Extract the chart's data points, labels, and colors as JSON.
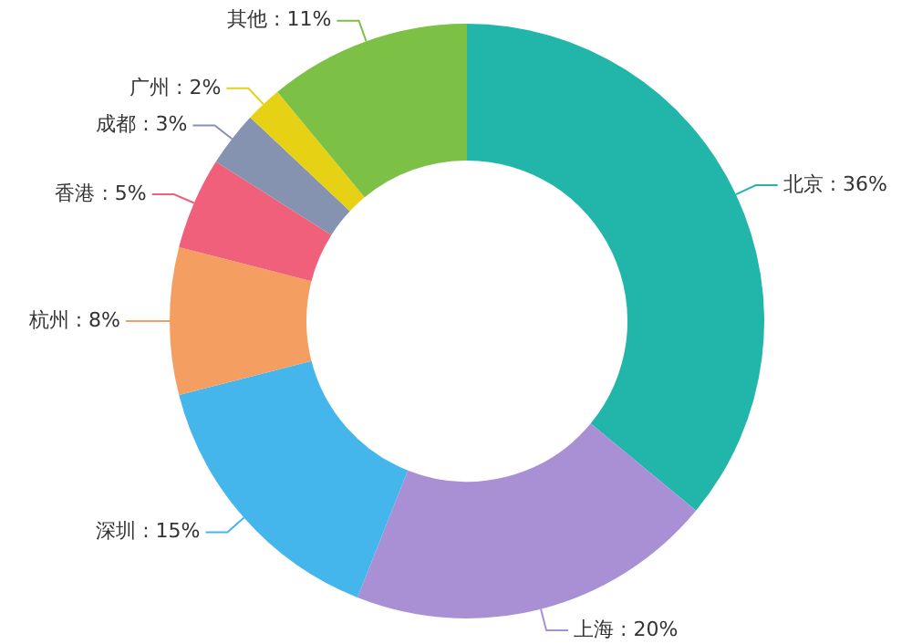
{
  "chart_data": {
    "type": "donut",
    "categories": [
      "北京",
      "上海",
      "深圳",
      "杭州",
      "香港",
      "成都",
      "广州",
      "其他"
    ],
    "values": [
      36,
      20,
      15,
      8,
      5,
      3,
      2,
      11
    ],
    "value_labels": [
      "36%",
      "20%",
      "15%",
      "8%",
      "5%",
      "3%",
      "2%",
      "11%"
    ],
    "colors": [
      "#22b6aa",
      "#a98fd4",
      "#45b6ec",
      "#f59e62",
      "#f0607a",
      "#8592b0",
      "#e6d114",
      "#7cc046"
    ],
    "legend": false
  }
}
